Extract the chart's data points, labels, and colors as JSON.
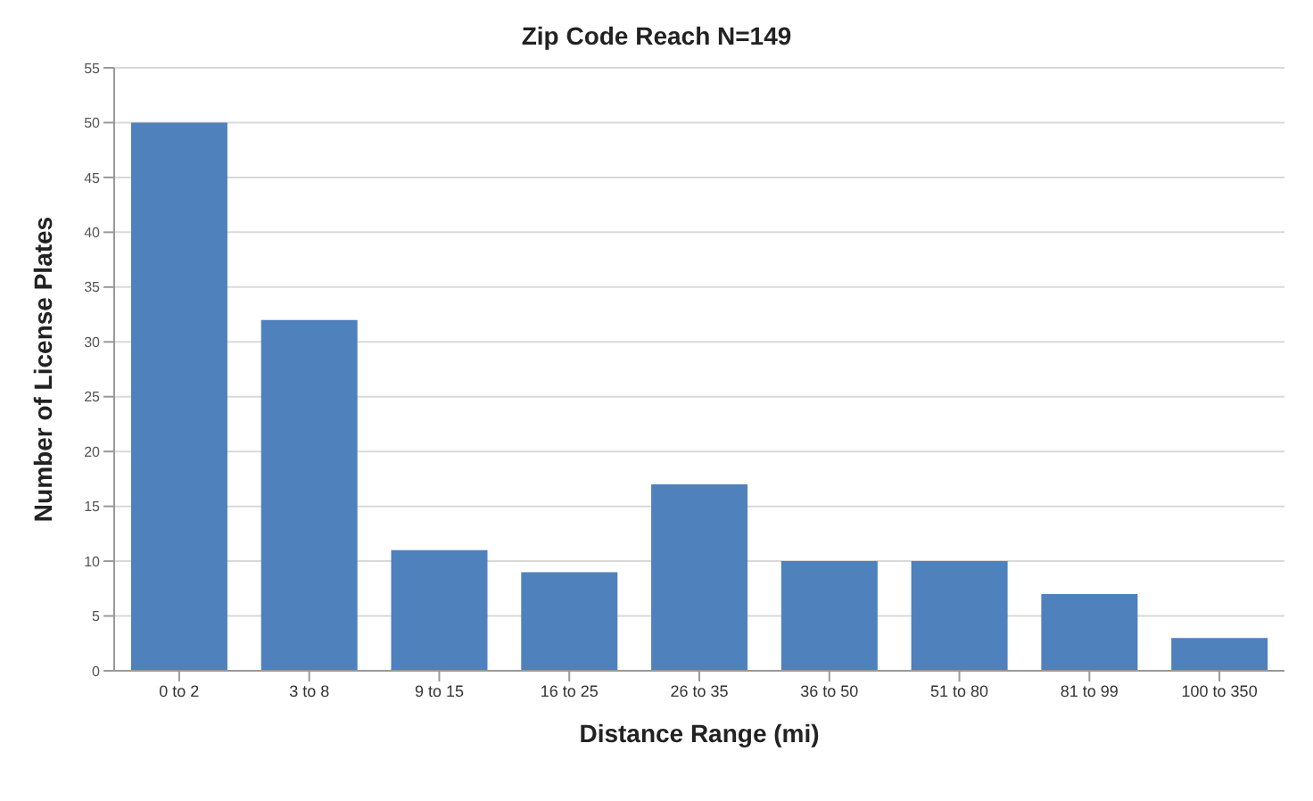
{
  "chart_data": {
    "type": "bar",
    "title": "Zip Code Reach N=149",
    "xlabel": "Distance Range (mi)",
    "ylabel": "Number of License Plates",
    "categories": [
      "0 to 2",
      "3 to 8",
      "9 to 15",
      "16 to 25",
      "26 to 35",
      "36 to 50",
      "51 to 80",
      "81 to 99",
      "100 to 350"
    ],
    "values": [
      50,
      32,
      11,
      9,
      17,
      10,
      10,
      7,
      3
    ],
    "color": "#4f81bd",
    "ylim": [
      0,
      55
    ],
    "yticks": [
      0,
      5,
      10,
      15,
      20,
      25,
      30,
      35,
      40,
      45,
      50,
      55
    ],
    "grid": "y",
    "legend": false
  }
}
